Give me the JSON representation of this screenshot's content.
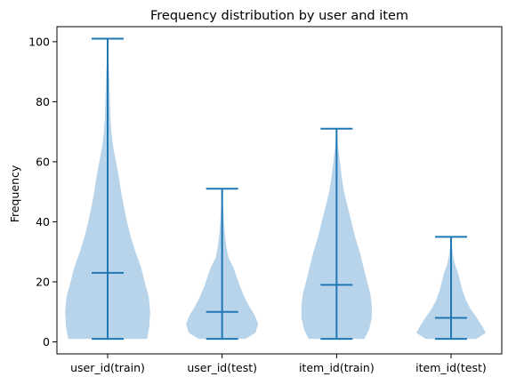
{
  "chart_data": {
    "type": "violin",
    "title": "Frequency distribution by user and item",
    "xlabel": "",
    "ylabel": "Frequency",
    "ylim": [
      -4,
      105
    ],
    "yticks": [
      0,
      20,
      40,
      60,
      80,
      100
    ],
    "categories": [
      "user_id(train)",
      "user_id(test)",
      "item_id(train)",
      "item_id(test)"
    ],
    "series": [
      {
        "min": 1,
        "max": 101,
        "median": 23,
        "profile": [
          [
            1,
            0.85
          ],
          [
            5,
            0.9
          ],
          [
            10,
            0.92
          ],
          [
            15,
            0.89
          ],
          [
            20,
            0.8
          ],
          [
            25,
            0.72
          ],
          [
            30,
            0.6
          ],
          [
            35,
            0.5
          ],
          [
            40,
            0.42
          ],
          [
            45,
            0.35
          ],
          [
            50,
            0.29
          ],
          [
            55,
            0.24
          ],
          [
            60,
            0.18
          ],
          [
            65,
            0.12
          ],
          [
            70,
            0.08
          ],
          [
            75,
            0.06
          ],
          [
            80,
            0.05
          ],
          [
            85,
            0.04
          ],
          [
            90,
            0.03
          ],
          [
            95,
            0.015
          ],
          [
            101,
            0.005
          ]
        ]
      },
      {
        "min": 1,
        "max": 51,
        "median": 10,
        "profile": [
          [
            1,
            0.5
          ],
          [
            3,
            0.72
          ],
          [
            6,
            0.78
          ],
          [
            9,
            0.7
          ],
          [
            12,
            0.58
          ],
          [
            15,
            0.48
          ],
          [
            18,
            0.4
          ],
          [
            21,
            0.33
          ],
          [
            25,
            0.24
          ],
          [
            28,
            0.14
          ],
          [
            32,
            0.09
          ],
          [
            36,
            0.06
          ],
          [
            40,
            0.04
          ],
          [
            45,
            0.02
          ],
          [
            51,
            0.005
          ]
        ]
      },
      {
        "min": 1,
        "max": 71,
        "median": 19,
        "profile": [
          [
            1,
            0.6
          ],
          [
            4,
            0.7
          ],
          [
            8,
            0.76
          ],
          [
            12,
            0.76
          ],
          [
            16,
            0.73
          ],
          [
            20,
            0.66
          ],
          [
            25,
            0.58
          ],
          [
            30,
            0.5
          ],
          [
            35,
            0.4
          ],
          [
            40,
            0.32
          ],
          [
            45,
            0.24
          ],
          [
            50,
            0.16
          ],
          [
            55,
            0.11
          ],
          [
            60,
            0.07
          ],
          [
            65,
            0.03
          ],
          [
            71,
            0.005
          ]
        ]
      },
      {
        "min": 1,
        "max": 35,
        "median": 8,
        "profile": [
          [
            1,
            0.55
          ],
          [
            3,
            0.75
          ],
          [
            5,
            0.68
          ],
          [
            8,
            0.56
          ],
          [
            11,
            0.42
          ],
          [
            14,
            0.32
          ],
          [
            17,
            0.25
          ],
          [
            20,
            0.2
          ],
          [
            23,
            0.15
          ],
          [
            26,
            0.08
          ],
          [
            29,
            0.04
          ],
          [
            32,
            0.02
          ],
          [
            35,
            0.005
          ]
        ]
      }
    ],
    "colors": {
      "body": "#b8d4ea",
      "line": "#1f77b4"
    },
    "grid": false,
    "legend": "none"
  }
}
